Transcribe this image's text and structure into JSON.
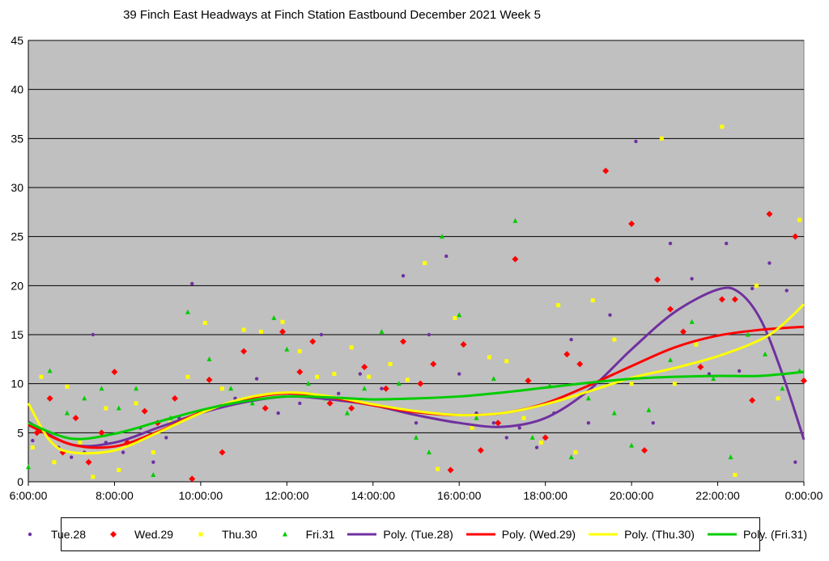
{
  "chart_data": {
    "type": "scatter",
    "title": "39 Finch East Headways at Finch Station Eastbound December 2021  Week 5",
    "xlabel": "",
    "ylabel": "",
    "x_unit": "hours of day",
    "xlim": [
      6,
      24
    ],
    "ylim": [
      0,
      45
    ],
    "y_ticks": [
      "0",
      "5",
      "10",
      "15",
      "20",
      "25",
      "30",
      "35",
      "40",
      "45"
    ],
    "x_ticks": [
      "6:00:00",
      "8:00:00",
      "10:00:00",
      "12:00:00",
      "14:00:00",
      "16:00:00",
      "18:00:00",
      "20:00:00",
      "22:00:00",
      "0:00:00"
    ],
    "grid": true,
    "legend_position": "bottom",
    "colors": {
      "tue": "#7030A0",
      "wed": "#FF0000",
      "thu": "#FFFF00",
      "fri": "#00CC00",
      "plot_bg": "#C0C0C0"
    },
    "series": [
      {
        "name": "Tue.28",
        "marker": "circle",
        "color": "#7030A0",
        "points": [
          [
            6.1,
            4.2
          ],
          [
            6.4,
            5.0
          ],
          [
            6.7,
            3.5
          ],
          [
            7.0,
            2.5
          ],
          [
            7.3,
            3.0
          ],
          [
            7.5,
            15.0
          ],
          [
            7.8,
            4.0
          ],
          [
            8.2,
            3.0
          ],
          [
            8.6,
            5.5
          ],
          [
            8.9,
            2.0
          ],
          [
            9.2,
            4.5
          ],
          [
            9.5,
            6.5
          ],
          [
            9.8,
            20.2
          ],
          [
            10.3,
            7.5
          ],
          [
            10.8,
            8.5
          ],
          [
            11.3,
            10.5
          ],
          [
            11.8,
            7.0
          ],
          [
            12.3,
            8.0
          ],
          [
            12.8,
            15.0
          ],
          [
            13.2,
            9.0
          ],
          [
            13.7,
            11.0
          ],
          [
            14.2,
            9.5
          ],
          [
            14.7,
            21.0
          ],
          [
            15.0,
            6.0
          ],
          [
            15.3,
            15.0
          ],
          [
            15.7,
            23.0
          ],
          [
            16.0,
            11.0
          ],
          [
            16.4,
            7.0
          ],
          [
            16.8,
            6.0
          ],
          [
            17.1,
            4.5
          ],
          [
            17.4,
            5.5
          ],
          [
            17.8,
            3.5
          ],
          [
            18.2,
            7.0
          ],
          [
            18.6,
            14.5
          ],
          [
            19.0,
            6.0
          ],
          [
            19.5,
            17.0
          ],
          [
            20.1,
            34.7
          ],
          [
            20.5,
            6.0
          ],
          [
            20.9,
            24.3
          ],
          [
            21.4,
            20.7
          ],
          [
            21.8,
            11.0
          ],
          [
            22.2,
            24.3
          ],
          [
            22.5,
            11.3
          ],
          [
            22.8,
            19.7
          ],
          [
            23.2,
            22.3
          ],
          [
            23.6,
            19.5
          ],
          [
            23.8,
            2.0
          ]
        ]
      },
      {
        "name": "Wed.29",
        "marker": "diamond",
        "color": "#FF0000",
        "points": [
          [
            6.2,
            5.0
          ],
          [
            6.5,
            8.5
          ],
          [
            6.8,
            3.0
          ],
          [
            7.1,
            6.5
          ],
          [
            7.4,
            2.0
          ],
          [
            7.7,
            5.0
          ],
          [
            8.0,
            11.2
          ],
          [
            8.3,
            4.0
          ],
          [
            8.7,
            7.2
          ],
          [
            9.0,
            6.0
          ],
          [
            9.4,
            8.5
          ],
          [
            9.8,
            0.3
          ],
          [
            10.2,
            10.4
          ],
          [
            10.5,
            3.0
          ],
          [
            11.0,
            13.3
          ],
          [
            11.5,
            7.5
          ],
          [
            11.9,
            15.3
          ],
          [
            12.3,
            11.2
          ],
          [
            12.6,
            14.3
          ],
          [
            13.0,
            8.0
          ],
          [
            13.5,
            7.5
          ],
          [
            13.8,
            11.7
          ],
          [
            14.3,
            9.5
          ],
          [
            14.7,
            14.3
          ],
          [
            15.1,
            10.0
          ],
          [
            15.4,
            12.0
          ],
          [
            15.8,
            1.2
          ],
          [
            16.1,
            14.0
          ],
          [
            16.5,
            3.2
          ],
          [
            16.9,
            6.0
          ],
          [
            17.3,
            22.7
          ],
          [
            17.6,
            10.3
          ],
          [
            18.0,
            4.5
          ],
          [
            18.5,
            13.0
          ],
          [
            18.8,
            12.0
          ],
          [
            19.4,
            31.7
          ],
          [
            20.0,
            26.3
          ],
          [
            20.3,
            3.2
          ],
          [
            20.6,
            20.6
          ],
          [
            20.9,
            17.6
          ],
          [
            21.2,
            15.3
          ],
          [
            21.6,
            11.7
          ],
          [
            22.1,
            18.6
          ],
          [
            22.4,
            18.6
          ],
          [
            22.8,
            8.3
          ],
          [
            23.2,
            27.3
          ],
          [
            23.8,
            25.0
          ],
          [
            24.0,
            10.3
          ]
        ]
      },
      {
        "name": "Thu.30",
        "marker": "square",
        "color": "#FFFF00",
        "points": [
          [
            6.1,
            3.5
          ],
          [
            6.3,
            10.7
          ],
          [
            6.6,
            2.0
          ],
          [
            6.9,
            9.7
          ],
          [
            7.2,
            4.0
          ],
          [
            7.5,
            0.5
          ],
          [
            7.8,
            7.5
          ],
          [
            8.1,
            1.2
          ],
          [
            8.5,
            8.0
          ],
          [
            8.9,
            3.0
          ],
          [
            9.3,
            6.0
          ],
          [
            9.7,
            10.7
          ],
          [
            10.1,
            16.2
          ],
          [
            10.5,
            9.5
          ],
          [
            11.0,
            15.5
          ],
          [
            11.4,
            15.3
          ],
          [
            11.9,
            16.3
          ],
          [
            12.3,
            13.3
          ],
          [
            12.7,
            10.7
          ],
          [
            13.1,
            11.0
          ],
          [
            13.5,
            13.7
          ],
          [
            13.9,
            10.7
          ],
          [
            14.4,
            12.0
          ],
          [
            14.8,
            10.4
          ],
          [
            15.2,
            22.3
          ],
          [
            15.5,
            1.3
          ],
          [
            15.9,
            16.7
          ],
          [
            16.3,
            5.5
          ],
          [
            16.7,
            12.7
          ],
          [
            17.1,
            12.3
          ],
          [
            17.5,
            6.5
          ],
          [
            17.9,
            4.0
          ],
          [
            18.3,
            18.0
          ],
          [
            18.7,
            3.0
          ],
          [
            19.1,
            18.5
          ],
          [
            19.6,
            14.5
          ],
          [
            20.0,
            10.0
          ],
          [
            20.7,
            35.0
          ],
          [
            21.0,
            10.0
          ],
          [
            21.5,
            14.0
          ],
          [
            22.1,
            36.2
          ],
          [
            22.4,
            0.7
          ],
          [
            22.9,
            20.0
          ],
          [
            23.4,
            8.5
          ],
          [
            23.9,
            26.7
          ]
        ]
      },
      {
        "name": "Fri.31",
        "marker": "triangle",
        "color": "#00CC00",
        "points": [
          [
            6.0,
            1.5
          ],
          [
            6.5,
            11.3
          ],
          [
            6.9,
            7.0
          ],
          [
            7.3,
            8.5
          ],
          [
            7.7,
            9.5
          ],
          [
            8.1,
            7.5
          ],
          [
            8.5,
            9.5
          ],
          [
            8.9,
            0.7
          ],
          [
            9.3,
            6.5
          ],
          [
            9.7,
            17.3
          ],
          [
            10.2,
            12.5
          ],
          [
            10.7,
            9.5
          ],
          [
            11.2,
            8.0
          ],
          [
            11.7,
            16.7
          ],
          [
            12.0,
            13.5
          ],
          [
            12.5,
            10.0
          ],
          [
            12.9,
            8.5
          ],
          [
            13.4,
            7.0
          ],
          [
            13.8,
            9.5
          ],
          [
            14.2,
            15.3
          ],
          [
            14.6,
            10.0
          ],
          [
            15.0,
            4.5
          ],
          [
            15.3,
            3.0
          ],
          [
            15.6,
            25.0
          ],
          [
            16.0,
            17.0
          ],
          [
            16.4,
            6.5
          ],
          [
            16.8,
            10.5
          ],
          [
            17.3,
            26.6
          ],
          [
            17.7,
            4.5
          ],
          [
            18.1,
            9.8
          ],
          [
            18.6,
            2.5
          ],
          [
            19.0,
            8.5
          ],
          [
            19.6,
            7.0
          ],
          [
            20.0,
            3.7
          ],
          [
            20.4,
            7.3
          ],
          [
            20.9,
            12.4
          ],
          [
            21.4,
            16.3
          ],
          [
            21.9,
            10.5
          ],
          [
            22.3,
            2.5
          ],
          [
            22.7,
            15.0
          ],
          [
            23.1,
            13.0
          ],
          [
            23.5,
            9.5
          ],
          [
            23.9,
            11.3
          ]
        ]
      },
      {
        "name": "Poly. (Tue.28)",
        "type": "line",
        "color": "#7030A0",
        "points": [
          [
            6.0,
            6.1
          ],
          [
            7.0,
            3.8
          ],
          [
            8.0,
            4.0
          ],
          [
            9.0,
            5.5
          ],
          [
            10.0,
            7.0
          ],
          [
            11.0,
            8.1
          ],
          [
            12.0,
            8.7
          ],
          [
            13.0,
            8.4
          ],
          [
            14.0,
            7.8
          ],
          [
            15.0,
            6.8
          ],
          [
            16.0,
            6.0
          ],
          [
            17.0,
            5.6
          ],
          [
            18.0,
            6.5
          ],
          [
            19.0,
            9.3
          ],
          [
            20.0,
            13.5
          ],
          [
            21.0,
            17.3
          ],
          [
            22.0,
            19.6
          ],
          [
            22.5,
            19.3
          ],
          [
            23.0,
            16.5
          ],
          [
            23.5,
            11.0
          ],
          [
            24.0,
            4.3
          ]
        ]
      },
      {
        "name": "Poly. (Wed.29)",
        "type": "line",
        "color": "#FF0000",
        "points": [
          [
            6.0,
            5.8
          ],
          [
            7.0,
            3.8
          ],
          [
            8.0,
            3.6
          ],
          [
            9.0,
            5.1
          ],
          [
            10.0,
            7.1
          ],
          [
            11.0,
            8.4
          ],
          [
            12.0,
            9.0
          ],
          [
            13.0,
            8.6
          ],
          [
            14.0,
            7.8
          ],
          [
            15.0,
            7.1
          ],
          [
            16.0,
            6.8
          ],
          [
            17.0,
            7.0
          ],
          [
            18.0,
            8.0
          ],
          [
            19.0,
            9.8
          ],
          [
            20.0,
            11.8
          ],
          [
            21.0,
            13.7
          ],
          [
            22.0,
            14.9
          ],
          [
            23.0,
            15.5
          ],
          [
            24.0,
            15.8
          ]
        ]
      },
      {
        "name": "Poly. (Thu.30)",
        "type": "line",
        "color": "#FFFF00",
        "points": [
          [
            6.0,
            8.0
          ],
          [
            6.5,
            4.2
          ],
          [
            7.0,
            3.0
          ],
          [
            8.0,
            3.2
          ],
          [
            9.0,
            5.0
          ],
          [
            10.0,
            7.0
          ],
          [
            11.0,
            8.5
          ],
          [
            12.0,
            9.1
          ],
          [
            13.0,
            8.7
          ],
          [
            14.0,
            7.9
          ],
          [
            15.0,
            7.2
          ],
          [
            16.0,
            6.8
          ],
          [
            17.0,
            7.0
          ],
          [
            18.0,
            7.9
          ],
          [
            19.0,
            9.2
          ],
          [
            20.0,
            10.6
          ],
          [
            21.0,
            11.6
          ],
          [
            22.0,
            12.8
          ],
          [
            23.0,
            14.5
          ],
          [
            23.5,
            16.0
          ],
          [
            24.0,
            18.1
          ]
        ]
      },
      {
        "name": "Poly. (Fri.31)",
        "type": "line",
        "color": "#00CC00",
        "points": [
          [
            6.0,
            6.0
          ],
          [
            7.0,
            4.4
          ],
          [
            8.0,
            4.9
          ],
          [
            9.0,
            6.1
          ],
          [
            10.0,
            7.3
          ],
          [
            11.0,
            8.2
          ],
          [
            12.0,
            8.7
          ],
          [
            13.0,
            8.6
          ],
          [
            14.0,
            8.4
          ],
          [
            15.0,
            8.5
          ],
          [
            16.0,
            8.7
          ],
          [
            17.0,
            9.1
          ],
          [
            18.0,
            9.6
          ],
          [
            19.0,
            10.1
          ],
          [
            20.0,
            10.5
          ],
          [
            21.0,
            10.7
          ],
          [
            22.0,
            10.8
          ],
          [
            23.0,
            10.8
          ],
          [
            24.0,
            11.2
          ]
        ]
      }
    ]
  }
}
